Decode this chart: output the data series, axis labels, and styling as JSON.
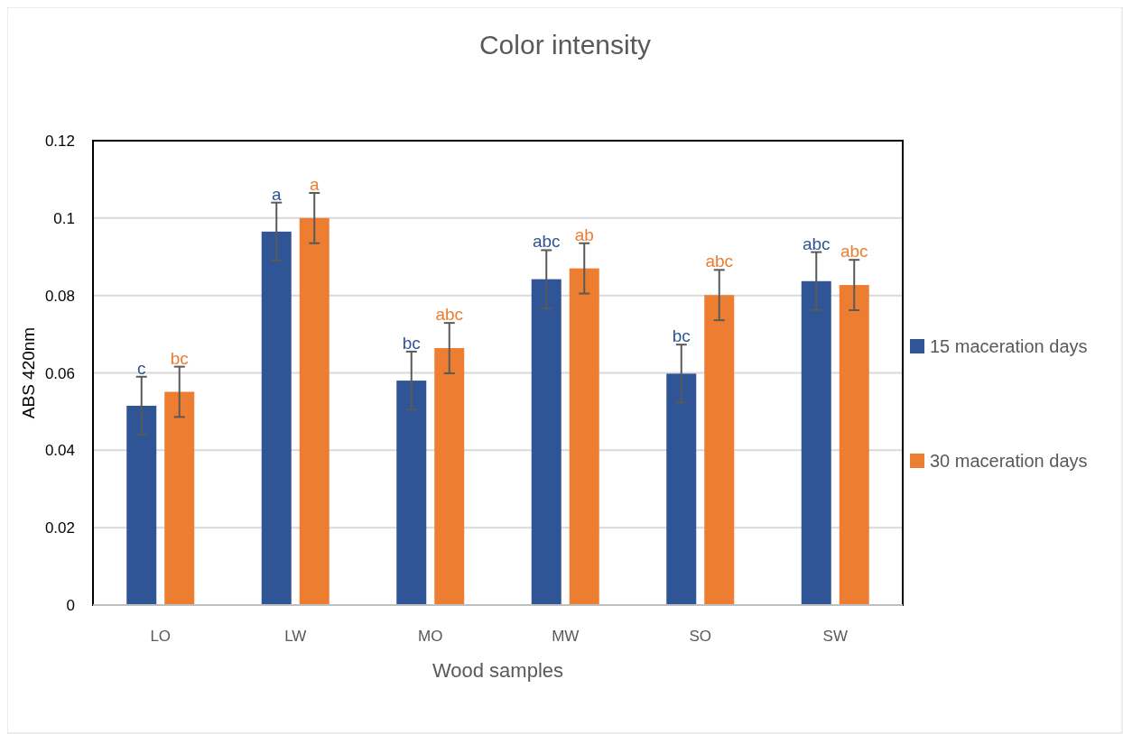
{
  "chart_data": {
    "type": "bar",
    "title": "Color intensity",
    "xlabel": "Wood samples",
    "ylabel": "ABS 420nm",
    "categories": [
      "LO",
      "LW",
      "MO",
      "MW",
      "SO",
      "SW"
    ],
    "series": [
      {
        "name": "15 maceration days",
        "color": "#2f5597",
        "values": [
          0.0515,
          0.0965,
          0.058,
          0.0842,
          0.0598,
          0.0837
        ],
        "errors": [
          0.0075,
          0.0075,
          0.0075,
          0.0075,
          0.0075,
          0.0075
        ],
        "value_labels": [
          "c",
          "a",
          "bc",
          "abc",
          "bc",
          "abc"
        ]
      },
      {
        "name": "30 maceration days",
        "color": "#ed7d31",
        "values": [
          0.0551,
          0.1,
          0.0664,
          0.087,
          0.0801,
          0.0827
        ],
        "errors": [
          0.0065,
          0.0065,
          0.0065,
          0.0065,
          0.0065,
          0.0065
        ],
        "value_labels": [
          "bc",
          "a",
          "abc",
          "ab",
          "abc",
          "abc"
        ]
      }
    ],
    "ylim": [
      0,
      0.12
    ],
    "yticks": [
      0,
      0.02,
      0.04,
      0.06,
      0.08,
      0.1,
      0.12
    ],
    "grid": "y",
    "legend": "right"
  }
}
